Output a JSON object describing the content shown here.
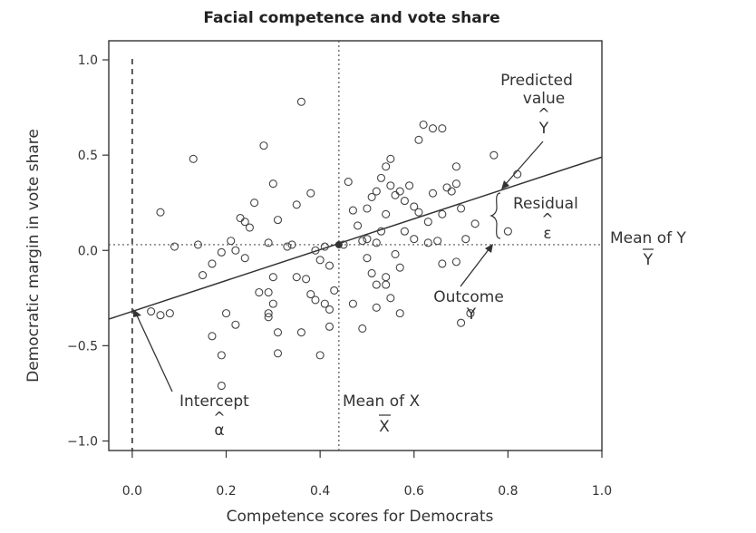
{
  "chart_data": {
    "type": "scatter",
    "title": "Facial competence and vote share",
    "xlabel": "Competence scores for Democrats",
    "ylabel": "Democratic margin in vote share",
    "xlim": [
      -0.05,
      1.0
    ],
    "ylim": [
      -1.05,
      1.1
    ],
    "x_ticks": [
      "0.0",
      "0.2",
      "0.4",
      "0.6",
      "0.8",
      "1.0"
    ],
    "y_ticks": [
      "1.0",
      "0.5",
      "0.0",
      "−0.5",
      "−1.0"
    ],
    "grid": false,
    "mean_x": 0.44,
    "mean_y": 0.03,
    "regression": {
      "intercept": -0.32,
      "slope": 0.81
    },
    "points": [
      [
        0.06,
        0.2
      ],
      [
        0.09,
        0.02
      ],
      [
        0.13,
        0.48
      ],
      [
        0.14,
        0.03
      ],
      [
        0.15,
        -0.13
      ],
      [
        0.17,
        -0.07
      ],
      [
        0.19,
        -0.01
      ],
      [
        0.21,
        0.05
      ],
      [
        0.22,
        0.0
      ],
      [
        0.24,
        -0.04
      ],
      [
        0.23,
        0.17
      ],
      [
        0.25,
        0.12
      ],
      [
        0.24,
        0.15
      ],
      [
        0.26,
        0.25
      ],
      [
        0.28,
        0.55
      ],
      [
        0.3,
        0.35
      ],
      [
        0.29,
        0.04
      ],
      [
        0.3,
        -0.14
      ],
      [
        0.29,
        -0.22
      ],
      [
        0.3,
        -0.28
      ],
      [
        0.31,
        0.16
      ],
      [
        0.33,
        0.02
      ],
      [
        0.34,
        0.03
      ],
      [
        0.35,
        0.24
      ],
      [
        0.36,
        0.78
      ],
      [
        0.35,
        -0.14
      ],
      [
        0.37,
        -0.15
      ],
      [
        0.38,
        0.3
      ],
      [
        0.39,
        0.0
      ],
      [
        0.38,
        -0.23
      ],
      [
        0.39,
        -0.26
      ],
      [
        0.4,
        -0.05
      ],
      [
        0.41,
        0.02
      ],
      [
        0.42,
        -0.08
      ],
      [
        0.41,
        -0.28
      ],
      [
        0.42,
        -0.31
      ],
      [
        0.42,
        -0.4
      ],
      [
        0.43,
        -0.21
      ],
      [
        0.4,
        -0.55
      ],
      [
        0.36,
        -0.43
      ],
      [
        0.29,
        -0.33
      ],
      [
        0.27,
        -0.22
      ],
      [
        0.22,
        -0.39
      ],
      [
        0.2,
        -0.33
      ],
      [
        0.17,
        -0.45
      ],
      [
        0.19,
        -0.55
      ],
      [
        0.04,
        -0.32
      ],
      [
        0.06,
        -0.34
      ],
      [
        0.08,
        -0.33
      ],
      [
        0.31,
        -0.43
      ],
      [
        0.31,
        -0.54
      ],
      [
        0.19,
        -0.71
      ],
      [
        0.29,
        -0.35
      ],
      [
        0.46,
        0.36
      ],
      [
        0.47,
        0.21
      ],
      [
        0.48,
        0.13
      ],
      [
        0.49,
        0.05
      ],
      [
        0.5,
        -0.04
      ],
      [
        0.51,
        -0.12
      ],
      [
        0.5,
        0.22
      ],
      [
        0.51,
        0.28
      ],
      [
        0.52,
        0.31
      ],
      [
        0.53,
        0.38
      ],
      [
        0.54,
        0.44
      ],
      [
        0.55,
        0.34
      ],
      [
        0.56,
        0.29
      ],
      [
        0.53,
        0.1
      ],
      [
        0.54,
        0.19
      ],
      [
        0.55,
        0.48
      ],
      [
        0.57,
        0.31
      ],
      [
        0.58,
        0.26
      ],
      [
        0.57,
        -0.09
      ],
      [
        0.56,
        -0.02
      ],
      [
        0.58,
        0.1
      ],
      [
        0.59,
        0.34
      ],
      [
        0.6,
        0.23
      ],
      [
        0.61,
        0.58
      ],
      [
        0.62,
        0.66
      ],
      [
        0.61,
        0.2
      ],
      [
        0.6,
        0.06
      ],
      [
        0.64,
        0.64
      ],
      [
        0.66,
        0.64
      ],
      [
        0.63,
        0.15
      ],
      [
        0.64,
        0.3
      ],
      [
        0.66,
        0.19
      ],
      [
        0.67,
        0.33
      ],
      [
        0.68,
        0.31
      ],
      [
        0.69,
        0.44
      ],
      [
        0.69,
        0.35
      ],
      [
        0.7,
        0.22
      ],
      [
        0.71,
        0.06
      ],
      [
        0.69,
        -0.06
      ],
      [
        0.66,
        -0.07
      ],
      [
        0.65,
        0.05
      ],
      [
        0.63,
        0.04
      ],
      [
        0.7,
        -0.38
      ],
      [
        0.72,
        -0.33
      ],
      [
        0.73,
        0.14
      ],
      [
        0.77,
        0.5
      ],
      [
        0.8,
        0.1
      ],
      [
        0.82,
        0.4
      ],
      [
        0.49,
        -0.41
      ],
      [
        0.52,
        -0.3
      ],
      [
        0.52,
        -0.18
      ],
      [
        0.54,
        -0.18
      ],
      [
        0.55,
        -0.25
      ],
      [
        0.57,
        -0.33
      ],
      [
        0.5,
        0.06
      ],
      [
        0.47,
        -0.28
      ],
      [
        0.45,
        0.03
      ],
      [
        0.52,
        0.04
      ],
      [
        0.54,
        -0.14
      ]
    ],
    "annotations": {
      "predicted": {
        "line1": "Predicted",
        "line2": "value",
        "symbol": "Y",
        "hat": "^"
      },
      "residual": {
        "label": "Residual",
        "symbol": "ε",
        "hat": "^"
      },
      "mean_y": {
        "label": "Mean of Y",
        "symbol": "Y"
      },
      "outcome": {
        "label": "Outcome",
        "symbol": "Y"
      },
      "intercept": {
        "label": "Intercept",
        "symbol": "α",
        "hat": "^"
      },
      "mean_x": {
        "label": "Mean of X",
        "symbol": "X"
      }
    }
  }
}
